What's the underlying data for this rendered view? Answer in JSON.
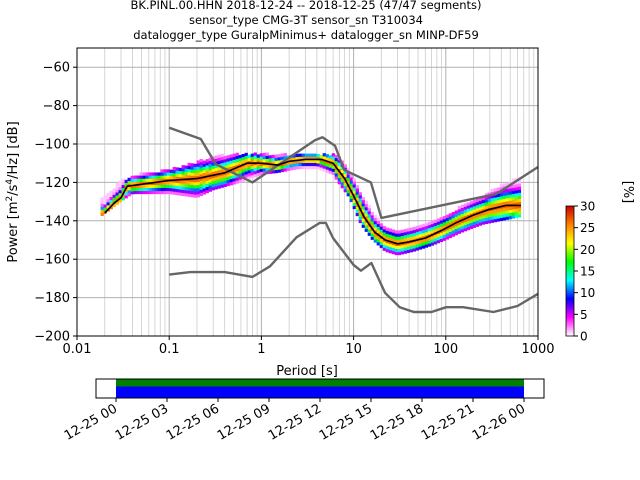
{
  "chart_data": {
    "type": "heatmap",
    "title_lines": [
      "BK.PINL.00.HHN   2018-12-24 -- 2018-12-25  (47/47 segments)",
      "sensor_type CMG-3T sensor_sn T310034",
      "datalogger_type GuralpMinimus+ datalogger_sn MINP-DF59"
    ],
    "xlabel": "Period [s]",
    "ylabel_parts": {
      "pre": "Power [m",
      "sup1": "2",
      "mid": "/s",
      "sup2": "4",
      "post": "/Hz] [dB]"
    },
    "x_scale": "log",
    "xlim": [
      0.01,
      1000
    ],
    "ylim": [
      -200,
      -50
    ],
    "x_tick_labels": [
      "0.01",
      "0.1",
      "1",
      "10",
      "100",
      "1000"
    ],
    "y_tick_labels": [
      "−60",
      "−80",
      "−100",
      "−120",
      "−140",
      "−160",
      "−180",
      "−200"
    ],
    "y_tick_values": [
      -60,
      -80,
      -100,
      -120,
      -140,
      -160,
      -180,
      -200
    ],
    "grid": true,
    "colorbar": {
      "label": "[%]",
      "range": [
        0,
        30
      ],
      "tick_labels": [
        "0",
        "5",
        "10",
        "15",
        "20",
        "25",
        "30"
      ],
      "tick_values": [
        0,
        5,
        10,
        15,
        20,
        25,
        30
      ],
      "colors": [
        "#ffffff",
        "#ff00ff",
        "#0000ff",
        "#00ffff",
        "#00ff00",
        "#ffff00",
        "#ff8000",
        "#cc0000"
      ]
    },
    "noise_model_color": "#666666",
    "mean_color": "#000000",
    "high_noise_model": [
      [
        0.1,
        -91.5
      ],
      [
        0.22,
        -97.4
      ],
      [
        0.32,
        -110.5
      ],
      [
        0.8,
        -120
      ],
      [
        3.8,
        -98
      ],
      [
        4.6,
        -96.5
      ],
      [
        6.3,
        -101
      ],
      [
        7.9,
        -113.5
      ],
      [
        15.4,
        -120
      ],
      [
        20,
        -138.5
      ],
      [
        354.8,
        -126
      ],
      [
        1000,
        -112
      ]
    ],
    "low_noise_model": [
      [
        0.1,
        -168
      ],
      [
        0.17,
        -166.7
      ],
      [
        0.4,
        -166.7
      ],
      [
        0.8,
        -169.2
      ],
      [
        1.24,
        -163.7
      ],
      [
        2.4,
        -148.6
      ],
      [
        4.3,
        -141.1
      ],
      [
        5.0,
        -141.1
      ],
      [
        6.0,
        -149
      ],
      [
        10,
        -163
      ],
      [
        12,
        -166
      ],
      [
        15.6,
        -162
      ],
      [
        21.9,
        -177.5
      ],
      [
        31.6,
        -185
      ],
      [
        45,
        -187.5
      ],
      [
        70,
        -187.5
      ],
      [
        101,
        -185
      ],
      [
        154,
        -185
      ],
      [
        328,
        -187.5
      ],
      [
        600,
        -184.4
      ],
      [
        1000,
        -178
      ]
    ],
    "mean_curve": [
      [
        0.02,
        -136
      ],
      [
        0.025,
        -131
      ],
      [
        0.03,
        -128
      ],
      [
        0.035,
        -122
      ],
      [
        0.05,
        -121
      ],
      [
        0.1,
        -119
      ],
      [
        0.2,
        -118
      ],
      [
        0.4,
        -115
      ],
      [
        0.7,
        -110
      ],
      [
        1.0,
        -110
      ],
      [
        1.5,
        -111
      ],
      [
        2.0,
        -109
      ],
      [
        3.0,
        -108
      ],
      [
        4.5,
        -108
      ],
      [
        6.0,
        -110
      ],
      [
        8.0,
        -118
      ],
      [
        10,
        -127
      ],
      [
        13,
        -138
      ],
      [
        17,
        -146
      ],
      [
        22,
        -150
      ],
      [
        30,
        -152
      ],
      [
        40,
        -151
      ],
      [
        60,
        -149
      ],
      [
        90,
        -145
      ],
      [
        130,
        -141
      ],
      [
        200,
        -137
      ],
      [
        300,
        -134
      ],
      [
        450,
        -132
      ],
      [
        650,
        -132
      ]
    ],
    "psd_band": [
      [
        0.018,
        -138,
        -130
      ],
      [
        0.03,
        -130,
        -120
      ],
      [
        0.04,
        -126,
        -117
      ],
      [
        0.1,
        -126,
        -114
      ],
      [
        0.2,
        -128,
        -110
      ],
      [
        0.3,
        -124,
        -107
      ],
      [
        0.6,
        -120,
        -106
      ],
      [
        1.0,
        -116,
        -106
      ],
      [
        1.5,
        -115,
        -106
      ],
      [
        2.5,
        -113,
        -106
      ],
      [
        4.0,
        -113,
        -106
      ],
      [
        6.0,
        -116,
        -106
      ],
      [
        7.0,
        -121,
        -108
      ],
      [
        9.0,
        -128,
        -114
      ],
      [
        12,
        -142,
        -126
      ],
      [
        16,
        -150,
        -136
      ],
      [
        22,
        -156,
        -144
      ],
      [
        30,
        -158,
        -146
      ],
      [
        45,
        -156,
        -144
      ],
      [
        70,
        -153,
        -141
      ],
      [
        100,
        -150,
        -138
      ],
      [
        150,
        -146,
        -133
      ],
      [
        250,
        -142,
        -128
      ],
      [
        400,
        -140,
        -122
      ],
      [
        650,
        -138,
        -118
      ]
    ],
    "timeline": {
      "tick_labels": [
        "12-25 00",
        "12-25 03",
        "12-25 06",
        "12-25 09",
        "12-25 12",
        "12-25 15",
        "12-25 18",
        "12-25 21",
        "12-26 00"
      ],
      "coverage": [
        [
          0,
          24
        ]
      ],
      "bar_colors": [
        "#008000",
        "#0000ff"
      ]
    }
  }
}
